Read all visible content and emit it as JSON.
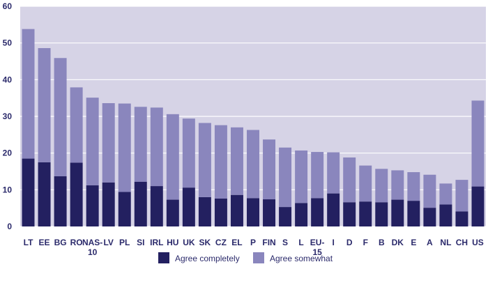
{
  "chart_data": {
    "type": "bar",
    "stacked": true,
    "title": "",
    "xlabel": "",
    "ylabel": "",
    "ylim": [
      0,
      60
    ],
    "yticks": [
      0,
      10,
      20,
      30,
      40,
      50,
      60
    ],
    "grid": true,
    "legend_position": "bottom",
    "categories": [
      [
        "LT"
      ],
      [
        "EE"
      ],
      [
        "BG"
      ],
      [
        "RO"
      ],
      [
        "NAS-",
        "10"
      ],
      [
        "LV"
      ],
      [
        "PL"
      ],
      [
        "SI"
      ],
      [
        "IRL"
      ],
      [
        "HU"
      ],
      [
        "UK"
      ],
      [
        "SK"
      ],
      [
        "CZ"
      ],
      [
        "EL"
      ],
      [
        "P"
      ],
      [
        "FIN"
      ],
      [
        "S"
      ],
      [
        "L"
      ],
      [
        "EU-",
        "15"
      ],
      [
        "I"
      ],
      [
        "D"
      ],
      [
        "F"
      ],
      [
        "B"
      ],
      [
        "DK"
      ],
      [
        "E"
      ],
      [
        "A"
      ],
      [
        "NL"
      ],
      [
        "CH"
      ],
      [
        "US"
      ]
    ],
    "series": [
      {
        "name": "Agree completely",
        "color": "#232060",
        "values": [
          18.5,
          17.5,
          13.7,
          17.4,
          11.2,
          12.0,
          9.4,
          12.2,
          11.0,
          7.3,
          10.6,
          8.0,
          7.6,
          8.6,
          7.7,
          7.4,
          5.3,
          6.4,
          7.7,
          9.0,
          6.6,
          6.8,
          6.6,
          7.3,
          7.0,
          5.1,
          6.0,
          4.1,
          10.9
        ]
      },
      {
        "name": "Agree somewhat",
        "color": "#8a86bd",
        "values": [
          35.3,
          31.1,
          32.2,
          20.5,
          23.9,
          21.6,
          24.1,
          20.4,
          21.4,
          23.3,
          18.8,
          20.2,
          20.0,
          18.4,
          18.6,
          16.3,
          16.2,
          14.3,
          12.6,
          11.2,
          12.2,
          9.8,
          9.1,
          8.0,
          7.8,
          9.0,
          5.7,
          8.6,
          23.4
        ]
      }
    ]
  },
  "colors": {
    "plot_background": "#d6d3e6",
    "grid": "#ffffff",
    "axis_text": "#2b2a6b"
  }
}
